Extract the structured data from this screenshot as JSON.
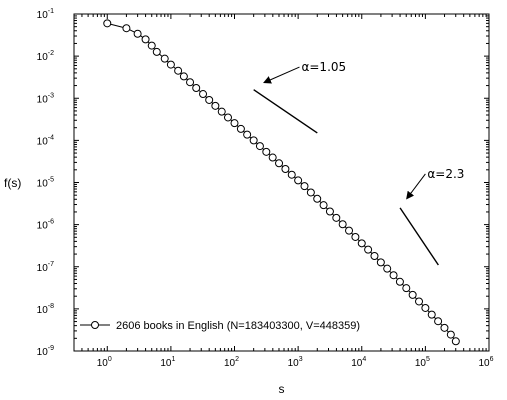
{
  "chart_data": {
    "type": "scatter",
    "xlabel": "s",
    "ylabel": "f(s)",
    "x_scale": "log",
    "y_scale": "log",
    "xlim": [
      0.3,
      1000000
    ],
    "ylim": [
      1e-09,
      0.1
    ],
    "grid": false,
    "legend_position": "bottom-left",
    "x_ticks": [
      {
        "base": "10",
        "exp": "0",
        "value": 1
      },
      {
        "base": "10",
        "exp": "1",
        "value": 10
      },
      {
        "base": "10",
        "exp": "2",
        "value": 100
      },
      {
        "base": "10",
        "exp": "3",
        "value": 1000
      },
      {
        "base": "10",
        "exp": "4",
        "value": 10000
      },
      {
        "base": "10",
        "exp": "5",
        "value": 100000
      },
      {
        "base": "10",
        "exp": "6",
        "value": 1000000
      }
    ],
    "y_ticks": [
      {
        "base": "10",
        "exp": "-1",
        "value": 0.1
      },
      {
        "base": "10",
        "exp": "-2",
        "value": 0.01
      },
      {
        "base": "10",
        "exp": "-3",
        "value": 0.001
      },
      {
        "base": "10",
        "exp": "-4",
        "value": 0.0001
      },
      {
        "base": "10",
        "exp": "-5",
        "value": 1e-05
      },
      {
        "base": "10",
        "exp": "-6",
        "value": 1e-06
      },
      {
        "base": "10",
        "exp": "-7",
        "value": 1e-07
      },
      {
        "base": "10",
        "exp": "-8",
        "value": 1e-08
      },
      {
        "base": "10",
        "exp": "-9",
        "value": 1e-09
      }
    ],
    "series": [
      {
        "name": "2606 books in English (N=183403300, V=448359)",
        "marker": "open-circle",
        "line": true,
        "color": "#000000",
        "x": [
          1,
          2,
          3,
          4,
          5,
          6,
          8,
          10,
          13,
          16,
          20,
          25,
          32,
          40,
          50,
          63,
          79,
          100,
          126,
          158,
          200,
          251,
          316,
          398,
          501,
          631,
          794,
          1000,
          1259,
          1585,
          1995,
          2512,
          3162,
          3981,
          5012,
          6310,
          7943,
          10000,
          12589,
          15849,
          19953,
          25119,
          31623,
          39811,
          50119,
          63096,
          79433,
          100000,
          125893,
          158489,
          199526,
          251189,
          301000
        ],
        "y": [
          0.06,
          0.046,
          0.034,
          0.025,
          0.0178,
          0.0126,
          0.0087,
          0.0063,
          0.0045,
          0.0033,
          0.0024,
          0.00175,
          0.00126,
          0.00091,
          0.00066,
          0.00048,
          0.00035,
          0.000256,
          0.000187,
          0.000137,
          0.0001,
          7.32e-05,
          5.35e-05,
          3.91e-05,
          2.86e-05,
          2.09e-05,
          1.53e-05,
          1.12e-05,
          8.2e-06,
          5.8e-06,
          4.1e-06,
          2.9e-06,
          2.05e-06,
          1.45e-06,
          1.02e-06,
          7.2e-07,
          5.1e-07,
          3.6e-07,
          2.55e-07,
          1.8e-07,
          1.27e-07,
          9e-08,
          6.3e-08,
          4.4e-08,
          3.1e-08,
          2.15e-08,
          1.5e-08,
          1.05e-08,
          7.3e-09,
          5.1e-09,
          3.55e-09,
          2.45e-09,
          1.7e-09
        ]
      }
    ],
    "annotations": [
      {
        "text": "α=1.05",
        "slope_line": {
          "x": [
            200,
            2000
          ],
          "y": [
            0.0016,
            0.00015
          ]
        },
        "arrow_from": {
          "x": 1050,
          "y": 0.0055
        },
        "arrow_to": {
          "x": 300,
          "y": 0.0024
        }
      },
      {
        "text": "α=2.3",
        "slope_line": {
          "x": [
            40000,
            160000
          ],
          "y": [
            2.5e-06,
            1.1e-07
          ]
        },
        "arrow_from": {
          "x": 100000,
          "y": 1.6e-05
        },
        "arrow_to": {
          "x": 52000,
          "y": 4.3e-06
        }
      }
    ]
  }
}
